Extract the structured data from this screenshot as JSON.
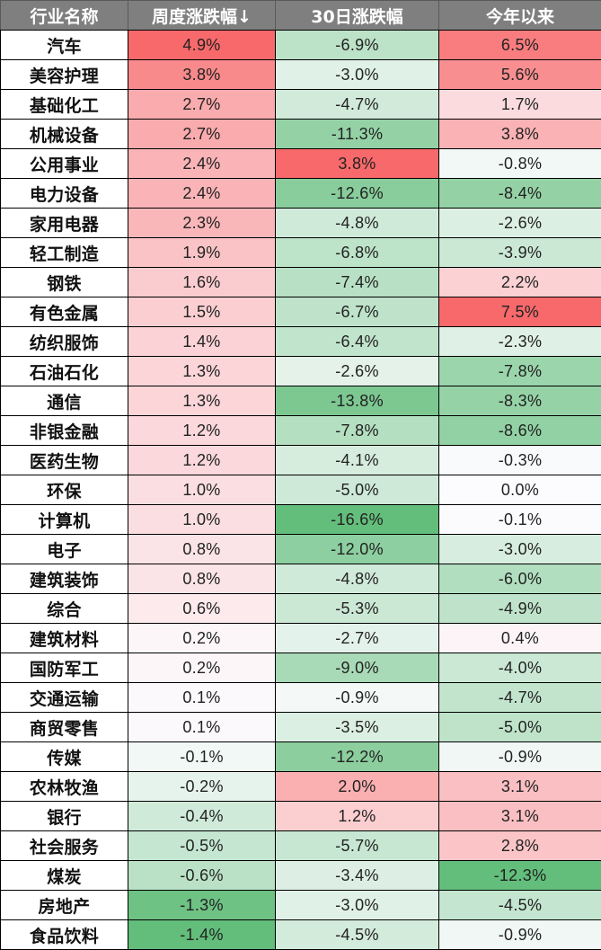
{
  "header": {
    "col_name": "行业名称",
    "col_week": "周度涨跌幅↓",
    "col_30d": "30日涨跌幅",
    "col_ytd": "今年以来"
  },
  "colors": {
    "header_bg": "#7f7f7f",
    "header_text": "#ffffff",
    "positive_max": "#F8696B",
    "negative_max": "#63BE7B",
    "neutral": "#FCFCFF"
  },
  "rows": [
    {
      "name": "汽车",
      "week": "4.9%",
      "d30": "-6.9%",
      "ytd": "6.5%"
    },
    {
      "name": "美容护理",
      "week": "3.8%",
      "d30": "-3.0%",
      "ytd": "5.6%"
    },
    {
      "name": "基础化工",
      "week": "2.7%",
      "d30": "-4.7%",
      "ytd": "1.7%"
    },
    {
      "name": "机械设备",
      "week": "2.7%",
      "d30": "-11.3%",
      "ytd": "3.8%"
    },
    {
      "name": "公用事业",
      "week": "2.4%",
      "d30": "3.8%",
      "ytd": "-0.8%"
    },
    {
      "name": "电力设备",
      "week": "2.4%",
      "d30": "-12.6%",
      "ytd": "-8.4%"
    },
    {
      "name": "家用电器",
      "week": "2.3%",
      "d30": "-4.8%",
      "ytd": "-2.6%"
    },
    {
      "name": "轻工制造",
      "week": "1.9%",
      "d30": "-6.8%",
      "ytd": "-3.9%"
    },
    {
      "name": "钢铁",
      "week": "1.6%",
      "d30": "-7.4%",
      "ytd": "2.2%"
    },
    {
      "name": "有色金属",
      "week": "1.5%",
      "d30": "-6.7%",
      "ytd": "7.5%"
    },
    {
      "name": "纺织服饰",
      "week": "1.4%",
      "d30": "-6.4%",
      "ytd": "-2.3%"
    },
    {
      "name": "石油石化",
      "week": "1.3%",
      "d30": "-2.6%",
      "ytd": "-7.8%"
    },
    {
      "name": "通信",
      "week": "1.3%",
      "d30": "-13.8%",
      "ytd": "-8.3%"
    },
    {
      "name": "非银金融",
      "week": "1.2%",
      "d30": "-7.8%",
      "ytd": "-8.6%"
    },
    {
      "name": "医药生物",
      "week": "1.2%",
      "d30": "-4.1%",
      "ytd": "-0.3%"
    },
    {
      "name": "环保",
      "week": "1.0%",
      "d30": "-5.0%",
      "ytd": "0.0%"
    },
    {
      "name": "计算机",
      "week": "1.0%",
      "d30": "-16.6%",
      "ytd": "-0.1%"
    },
    {
      "name": "电子",
      "week": "0.8%",
      "d30": "-12.0%",
      "ytd": "-3.0%"
    },
    {
      "name": "建筑装饰",
      "week": "0.8%",
      "d30": "-4.8%",
      "ytd": "-6.0%"
    },
    {
      "name": "综合",
      "week": "0.6%",
      "d30": "-5.3%",
      "ytd": "-4.9%"
    },
    {
      "name": "建筑材料",
      "week": "0.2%",
      "d30": "-2.7%",
      "ytd": "0.4%"
    },
    {
      "name": "国防军工",
      "week": "0.2%",
      "d30": "-9.0%",
      "ytd": "-4.0%"
    },
    {
      "name": "交通运输",
      "week": "0.1%",
      "d30": "-0.9%",
      "ytd": "-4.7%"
    },
    {
      "name": "商贸零售",
      "week": "0.1%",
      "d30": "-3.5%",
      "ytd": "-5.0%"
    },
    {
      "name": "传媒",
      "week": "-0.1%",
      "d30": "-12.2%",
      "ytd": "-0.9%"
    },
    {
      "name": "农林牧渔",
      "week": "-0.2%",
      "d30": "2.0%",
      "ytd": "3.1%"
    },
    {
      "name": "银行",
      "week": "-0.4%",
      "d30": "1.2%",
      "ytd": "3.1%"
    },
    {
      "name": "社会服务",
      "week": "-0.5%",
      "d30": "-5.7%",
      "ytd": "2.8%"
    },
    {
      "name": "煤炭",
      "week": "-0.6%",
      "d30": "-3.4%",
      "ytd": "-12.3%"
    },
    {
      "name": "房地产",
      "week": "-1.3%",
      "d30": "-3.0%",
      "ytd": "-4.5%"
    },
    {
      "name": "食品饮料",
      "week": "-1.4%",
      "d30": "-4.5%",
      "ytd": "-0.9%"
    }
  ],
  "chart_data": {
    "type": "heatmap",
    "title": "",
    "columns": [
      "行业名称",
      "周度涨跌幅↓",
      "30日涨跌幅",
      "今年以来"
    ],
    "sort": "周度涨跌幅 descending",
    "color_scale": {
      "positive": "#F8696B",
      "zero": "#FCFCFF",
      "negative": "#63BE7B",
      "per_column": true
    },
    "categories": [
      "汽车",
      "美容护理",
      "基础化工",
      "机械设备",
      "公用事业",
      "电力设备",
      "家用电器",
      "轻工制造",
      "钢铁",
      "有色金属",
      "纺织服饰",
      "石油石化",
      "通信",
      "非银金融",
      "医药生物",
      "环保",
      "计算机",
      "电子",
      "建筑装饰",
      "综合",
      "建筑材料",
      "国防军工",
      "交通运输",
      "商贸零售",
      "传媒",
      "农林牧渔",
      "银行",
      "社会服务",
      "煤炭",
      "房地产",
      "食品饮料"
    ],
    "series": [
      {
        "name": "周度涨跌幅",
        "unit": "%",
        "values": [
          4.9,
          3.8,
          2.7,
          2.7,
          2.4,
          2.4,
          2.3,
          1.9,
          1.6,
          1.5,
          1.4,
          1.3,
          1.3,
          1.2,
          1.2,
          1.0,
          1.0,
          0.8,
          0.8,
          0.6,
          0.2,
          0.2,
          0.1,
          0.1,
          -0.1,
          -0.2,
          -0.4,
          -0.5,
          -0.6,
          -1.3,
          -1.4
        ]
      },
      {
        "name": "30日涨跌幅",
        "unit": "%",
        "values": [
          -6.9,
          -3.0,
          -4.7,
          -11.3,
          3.8,
          -12.6,
          -4.8,
          -6.8,
          -7.4,
          -6.7,
          -6.4,
          -2.6,
          -13.8,
          -7.8,
          -4.1,
          -5.0,
          -16.6,
          -12.0,
          -4.8,
          -5.3,
          -2.7,
          -9.0,
          -0.9,
          -3.5,
          -12.2,
          2.0,
          1.2,
          -5.7,
          -3.4,
          -3.0,
          -4.5
        ]
      },
      {
        "name": "今年以来",
        "unit": "%",
        "values": [
          6.5,
          5.6,
          1.7,
          3.8,
          -0.8,
          -8.4,
          -2.6,
          -3.9,
          2.2,
          7.5,
          -2.3,
          -7.8,
          -8.3,
          -8.6,
          -0.3,
          0.0,
          -0.1,
          -3.0,
          -6.0,
          -4.9,
          0.4,
          -4.0,
          -4.7,
          -5.0,
          -0.9,
          3.1,
          3.1,
          2.8,
          -12.3,
          -4.5,
          -0.9
        ]
      }
    ]
  }
}
